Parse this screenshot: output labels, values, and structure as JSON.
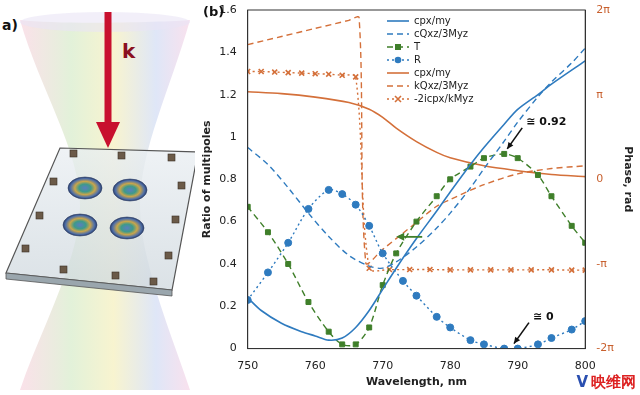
{
  "panel_a": {
    "label": "a)",
    "beam_label": "k"
  },
  "watermark": "映维网",
  "chart_data": {
    "type": "line",
    "panel_label": "(b)",
    "x_label": "Wavelength, nm",
    "y_label": "Ratio of multipoles",
    "y2_label": "Phase, rad",
    "xlim": [
      750,
      800
    ],
    "xticks": [
      750,
      760,
      770,
      780,
      790,
      800
    ],
    "ylim": [
      0,
      1.6
    ],
    "yticks": [
      0,
      0.2,
      0.4,
      0.6,
      0.8,
      1,
      1.2,
      1.4,
      1.6
    ],
    "y2lim": [
      -6.2832,
      6.2832
    ],
    "y2ticks": [
      {
        "value": -6.2832,
        "label": "-2π"
      },
      {
        "value": -3.1416,
        "label": "-π"
      },
      0,
      {
        "value": 3.1416,
        "label": "π"
      },
      {
        "value": 6.2832,
        "label": "2π"
      }
    ],
    "grid": false,
    "legend": "upper right",
    "series": [
      {
        "name": "cpx/my",
        "color": "#2f7bbf",
        "line_style": "solid",
        "x": [
          750,
          752,
          755,
          758,
          760,
          762,
          764,
          766,
          768,
          770,
          772,
          775,
          778,
          780,
          783,
          785,
          788,
          790,
          793,
          795,
          800
        ],
        "values": [
          0.24,
          0.18,
          0.12,
          0.08,
          0.06,
          0.04,
          0.05,
          0.1,
          0.18,
          0.28,
          0.38,
          0.52,
          0.65,
          0.74,
          0.87,
          0.95,
          1.06,
          1.13,
          1.2,
          1.25,
          1.36
        ]
      },
      {
        "name": "cQxz/3Myz",
        "color": "#2f7bbf",
        "line_style": "dashed",
        "x": [
          750,
          753,
          756,
          759,
          762,
          765,
          768,
          770,
          772,
          775,
          778,
          780,
          783,
          785,
          788,
          790,
          793,
          795,
          798,
          800
        ],
        "values": [
          0.95,
          0.87,
          0.76,
          0.64,
          0.53,
          0.44,
          0.39,
          0.38,
          0.41,
          0.48,
          0.57,
          0.64,
          0.76,
          0.85,
          0.98,
          1.07,
          1.19,
          1.26,
          1.35,
          1.42
        ]
      },
      {
        "name": "T",
        "color": "#3f7f2a",
        "line_style": "dashed",
        "marker": "square",
        "x": [
          750,
          753,
          756,
          759,
          762,
          764,
          766,
          768,
          770,
          772,
          775,
          778,
          780,
          783,
          785,
          788,
          790,
          793,
          795,
          798,
          800
        ],
        "values": [
          0.67,
          0.55,
          0.4,
          0.22,
          0.08,
          0.02,
          0.02,
          0.1,
          0.3,
          0.45,
          0.6,
          0.72,
          0.8,
          0.86,
          0.9,
          0.92,
          0.9,
          0.82,
          0.72,
          0.58,
          0.5
        ]
      },
      {
        "name": "R",
        "color": "#2f7bbf",
        "line_style": "dotted",
        "marker": "circle",
        "x": [
          750,
          753,
          756,
          759,
          762,
          764,
          766,
          768,
          770,
          773,
          775,
          778,
          780,
          783,
          785,
          788,
          790,
          793,
          795,
          798,
          800
        ],
        "values": [
          0.23,
          0.36,
          0.5,
          0.66,
          0.75,
          0.73,
          0.68,
          0.58,
          0.45,
          0.32,
          0.25,
          0.15,
          0.1,
          0.04,
          0.02,
          0,
          0,
          0.02,
          0.05,
          0.09,
          0.13
        ]
      },
      {
        "name": "cpx/my",
        "color": "#d4703a",
        "line_style": "solid",
        "axis": "y2",
        "x": [
          750,
          755,
          760,
          765,
          768,
          770,
          772,
          775,
          778,
          780,
          785,
          790,
          795,
          800
        ],
        "values": [
          3.25,
          3.18,
          3.05,
          2.85,
          2.6,
          2.3,
          1.9,
          1.4,
          1.0,
          0.8,
          0.5,
          0.32,
          0.18,
          0.1
        ]
      },
      {
        "name": "kQxz/3Myz",
        "color": "#d4703a",
        "line_style": "dashed",
        "axis": "y2",
        "x": [
          750,
          755,
          760,
          765,
          766.5,
          767.5,
          770,
          773,
          775,
          778,
          780,
          785,
          790,
          795,
          800
        ],
        "values": [
          5.0,
          5.3,
          5.6,
          5.9,
          6.0,
          -3.1,
          -2.6,
          -2.0,
          -1.6,
          -1.0,
          -0.75,
          -0.2,
          0.2,
          0.4,
          0.5
        ]
      },
      {
        "name": "-2icpx/kMyz",
        "color": "#d4703a",
        "line_style": "dotted",
        "marker": "cross",
        "axis": "y2",
        "x": [
          750,
          752,
          754,
          756,
          758,
          760,
          762,
          764,
          766,
          768,
          771,
          774,
          777,
          780,
          783,
          786,
          789,
          792,
          795,
          798,
          800
        ],
        "values": [
          4.0,
          4.0,
          3.98,
          3.96,
          3.94,
          3.92,
          3.9,
          3.86,
          3.8,
          -3.3,
          -3.35,
          -3.35,
          -3.35,
          -3.36,
          -3.36,
          -3.36,
          -3.36,
          -3.36,
          -3.36,
          -3.37,
          -3.37
        ]
      }
    ],
    "annotations": [
      {
        "text": "≅ 0.92",
        "x": 788,
        "y": 0.92
      },
      {
        "text": "≅ 0",
        "x": 789,
        "y": 0
      }
    ]
  }
}
